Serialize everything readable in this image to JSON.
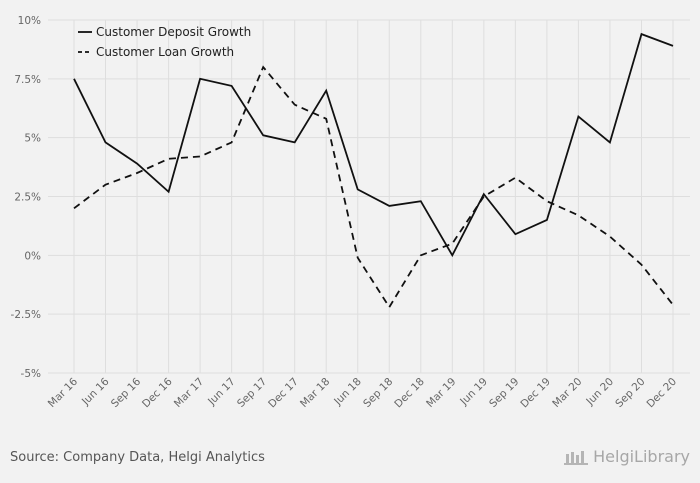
{
  "chart_data": {
    "type": "line",
    "categories": [
      "Mar 16",
      "Jun 16",
      "Sep 16",
      "Dec 16",
      "Mar 17",
      "Jun 17",
      "Sep 17",
      "Dec 17",
      "Mar 18",
      "Jun 18",
      "Sep 18",
      "Dec 18",
      "Mar 19",
      "Jun 19",
      "Sep 19",
      "Dec 19",
      "Mar 20",
      "Jun 20",
      "Sep 20",
      "Dec 20"
    ],
    "series": [
      {
        "name": "Customer Deposit Growth",
        "style": "solid",
        "values": [
          7.5,
          4.8,
          3.9,
          2.7,
          7.5,
          7.2,
          5.1,
          4.8,
          7.0,
          2.8,
          2.1,
          2.3,
          0.0,
          2.6,
          0.9,
          1.5,
          5.9,
          4.8,
          9.4,
          8.9
        ]
      },
      {
        "name": "Customer Loan Growth",
        "style": "dashed",
        "values": [
          2.0,
          3.0,
          3.5,
          4.1,
          4.2,
          4.8,
          8.0,
          6.4,
          5.8,
          -0.1,
          -2.2,
          0.0,
          0.5,
          2.5,
          3.3,
          2.3,
          1.7,
          0.8,
          -0.4,
          -2.1
        ]
      }
    ],
    "y_ticks": [
      10,
      7.5,
      5,
      2.5,
      0,
      -2.5,
      -5
    ],
    "y_tick_labels": [
      "10%",
      "7.5%",
      "5%",
      "2.5%",
      "0%",
      "-2.5%",
      "-5%"
    ],
    "ylim": [
      -5,
      10
    ],
    "grid": true,
    "legend_position": "top-left",
    "colors": {
      "line": "#111111",
      "grid": "#dedede",
      "background": "#f2f2f2"
    }
  },
  "footer": {
    "source": "Source: Company Data, Helgi Analytics",
    "logo_text": "HelgiLibrary"
  }
}
